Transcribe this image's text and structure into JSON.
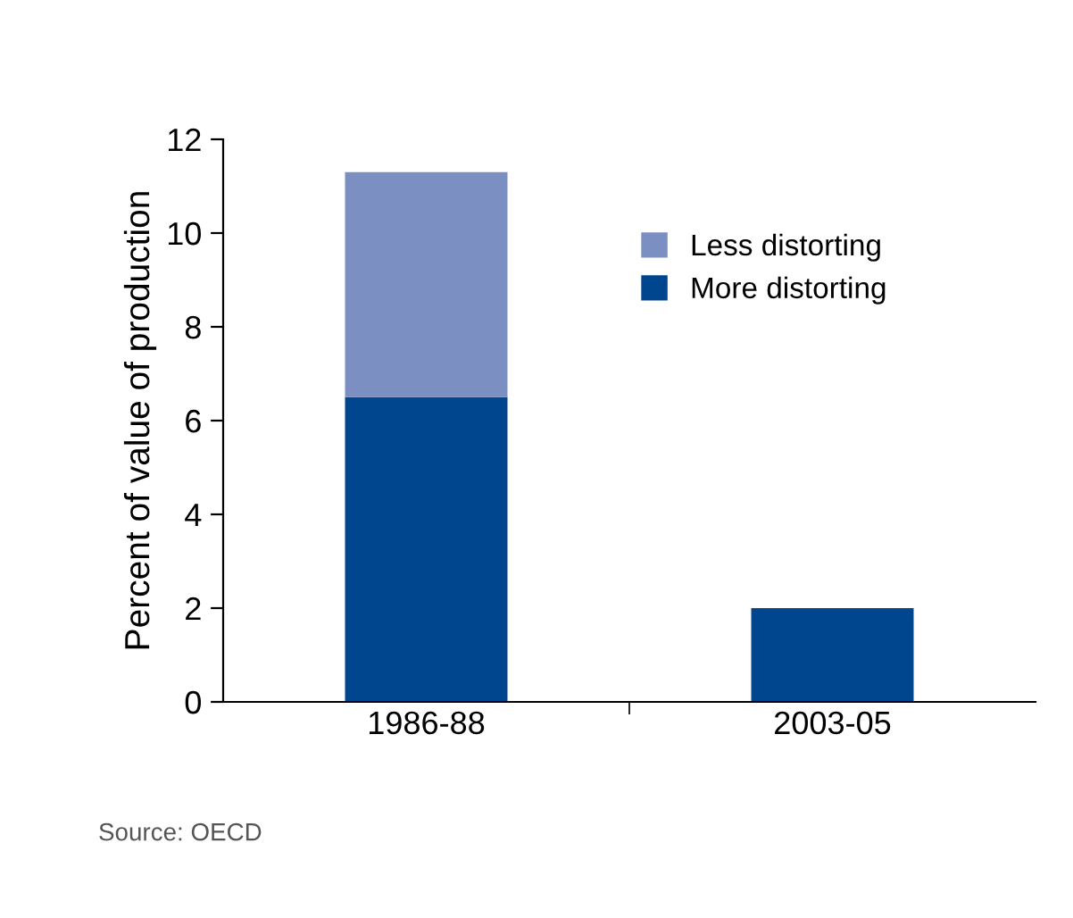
{
  "chart_data": {
    "type": "bar",
    "stacked": true,
    "ylabel": "Percent of value of production",
    "categories": [
      "1986-88",
      "2003-05"
    ],
    "series": [
      {
        "name": "More distorting",
        "color": "#00468e",
        "values": [
          6.5,
          2.0
        ]
      },
      {
        "name": "Less distorting",
        "color": "#7c8fc3",
        "values": [
          4.8,
          null
        ]
      }
    ],
    "ylim": [
      0,
      12
    ],
    "yticks": [
      0,
      2,
      4,
      6,
      8,
      10,
      12
    ],
    "grid": false,
    "legend": "top right",
    "annotations": [
      "Source: OECD"
    ]
  }
}
